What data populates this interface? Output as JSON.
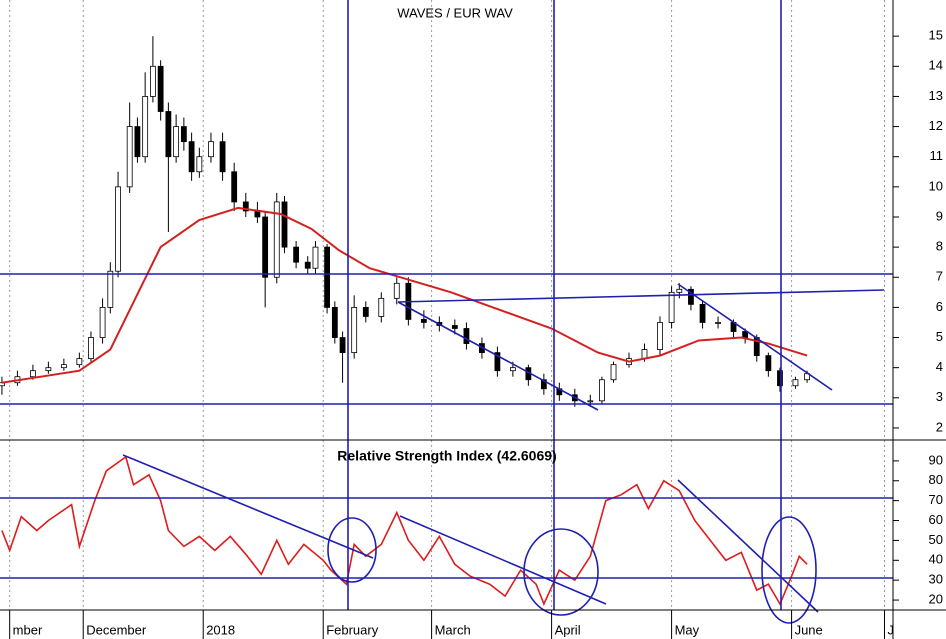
{
  "chart_data": [
    {
      "type": "candlestick",
      "title": "WAVES / EUR WAV",
      "x": [
        9,
        13,
        17,
        21,
        25,
        29,
        32,
        35,
        37,
        39,
        42,
        44,
        46,
        48,
        50,
        52,
        54,
        56,
        58,
        60,
        63,
        66,
        69,
        72,
        75,
        77,
        80,
        82,
        85,
        88,
        90,
        93,
        95,
        97,
        100,
        103,
        107,
        111,
        114,
        118,
        122,
        126,
        129,
        133,
        137,
        141,
        145,
        149,
        153,
        157,
        161,
        164,
        167,
        171,
        175,
        179,
        182,
        184,
        187,
        190,
        194,
        198,
        201,
        204,
        207,
        210,
        214,
        217
      ],
      "open": [
        3.4,
        3.5,
        3.7,
        3.9,
        4.0,
        4.1,
        4.3,
        5.0,
        6.0,
        7.2,
        10.0,
        12.0,
        11.0,
        13.0,
        14.0,
        12.5,
        11.0,
        12.0,
        11.5,
        10.5,
        11.0,
        11.5,
        10.5,
        9.5,
        9.2,
        9.0,
        7.0,
        9.5,
        8.0,
        7.5,
        7.3,
        8.0,
        6.0,
        5.0,
        4.5,
        6.0,
        5.7,
        6.3,
        6.8,
        5.6,
        5.5,
        5.4,
        5.3,
        4.8,
        4.5,
        3.9,
        4.0,
        3.6,
        3.3,
        3.1,
        2.9,
        2.9,
        3.6,
        4.1,
        4.3,
        4.6,
        5.5,
        6.5,
        6.6,
        6.1,
        5.5,
        5.5,
        5.2,
        5.0,
        4.4,
        3.9,
        3.4,
        3.6
      ],
      "high": [
        3.7,
        3.9,
        4.1,
        4.2,
        4.3,
        4.5,
        5.2,
        6.3,
        7.5,
        10.5,
        12.8,
        12.3,
        13.8,
        15.0,
        14.2,
        12.8,
        12.4,
        12.3,
        11.8,
        11.3,
        11.8,
        11.8,
        10.8,
        9.8,
        9.5,
        9.2,
        9.8,
        9.7,
        8.2,
        7.7,
        8.2,
        8.1,
        6.2,
        5.2,
        6.4,
        6.2,
        6.5,
        7.0,
        7.0,
        5.9,
        5.7,
        5.6,
        5.5,
        5.0,
        4.7,
        4.2,
        4.1,
        3.8,
        3.5,
        3.3,
        3.1,
        3.7,
        4.2,
        4.5,
        4.8,
        5.7,
        6.7,
        6.8,
        6.7,
        6.2,
        5.7,
        5.6,
        5.3,
        5.1,
        4.5,
        4.0,
        3.7,
        3.9
      ],
      "low": [
        3.1,
        3.4,
        3.6,
        3.8,
        3.9,
        4.0,
        4.2,
        4.8,
        5.8,
        7.0,
        9.8,
        10.8,
        10.8,
        12.8,
        12.2,
        8.5,
        10.8,
        11.2,
        10.2,
        10.3,
        10.8,
        10.2,
        9.2,
        9.0,
        8.8,
        6.0,
        6.8,
        7.8,
        7.3,
        7.1,
        7.1,
        5.8,
        4.8,
        3.5,
        4.3,
        5.5,
        5.5,
        6.1,
        5.4,
        5.3,
        5.2,
        5.1,
        4.6,
        4.3,
        3.7,
        3.7,
        3.4,
        3.1,
        2.9,
        2.7,
        2.7,
        2.8,
        3.5,
        4.0,
        4.2,
        4.4,
        5.3,
        6.3,
        5.9,
        5.3,
        5.3,
        5.0,
        4.8,
        4.2,
        3.7,
        3.2,
        3.3,
        3.5
      ],
      "close": [
        3.5,
        3.7,
        3.9,
        4.0,
        4.1,
        4.3,
        5.0,
        6.0,
        7.2,
        10.0,
        12.0,
        11.0,
        13.0,
        14.0,
        12.5,
        11.0,
        12.0,
        11.5,
        10.5,
        11.0,
        11.5,
        10.5,
        9.5,
        9.2,
        9.0,
        7.0,
        9.5,
        8.0,
        7.5,
        7.3,
        8.0,
        6.0,
        5.0,
        4.5,
        6.0,
        5.7,
        6.3,
        6.8,
        5.6,
        5.5,
        5.4,
        5.3,
        4.8,
        4.5,
        3.9,
        4.0,
        3.6,
        3.3,
        3.1,
        2.9,
        2.9,
        3.6,
        4.1,
        4.3,
        4.6,
        5.5,
        6.5,
        6.6,
        6.1,
        5.5,
        5.5,
        5.2,
        5.0,
        4.4,
        3.9,
        3.4,
        3.6,
        3.8
      ],
      "up_color": "#ffffff",
      "down_color": "#000000",
      "moving_average": {
        "color": "#d42020",
        "x": [
          9,
          29,
          37,
          45,
          50,
          60,
          70,
          81,
          89,
          96,
          104,
          112,
          125,
          138,
          151,
          163,
          171,
          179,
          189,
          200,
          207,
          217
        ],
        "values": [
          3.5,
          3.9,
          4.6,
          6.7,
          8.0,
          8.9,
          9.3,
          9.1,
          8.6,
          7.9,
          7.3,
          7.0,
          6.5,
          5.9,
          5.3,
          4.5,
          4.2,
          4.4,
          4.9,
          5.0,
          4.8,
          4.4
        ]
      },
      "xlim": [
        8.5,
        239.2
      ],
      "ylim": [
        1.6,
        16.2
      ],
      "yticks": [
        2,
        3,
        4,
        5,
        6,
        7,
        8,
        9,
        10,
        11,
        12,
        13,
        14,
        15
      ]
    },
    {
      "type": "line",
      "title": "Relative Strength Index (42.6069)",
      "x": [
        9,
        11,
        14,
        18,
        21,
        27,
        29,
        33,
        36,
        41,
        43,
        47,
        50,
        52,
        56,
        60,
        64,
        68,
        72,
        76,
        80,
        83,
        87,
        92,
        94,
        98,
        100,
        103,
        107,
        111,
        114,
        118,
        122,
        126,
        130,
        135,
        139,
        143,
        147,
        149,
        153,
        157,
        161,
        165,
        169,
        173,
        176,
        180,
        184,
        188,
        192,
        196,
        200,
        204,
        207,
        210,
        213,
        215,
        217
      ],
      "values": [
        55,
        45,
        62,
        55,
        60,
        68,
        47,
        70,
        85,
        92,
        78,
        83,
        70,
        55,
        47,
        52,
        45,
        52,
        43,
        33,
        50,
        38,
        48,
        40,
        35,
        28,
        48,
        42,
        48,
        64,
        50,
        40,
        52,
        38,
        32,
        28,
        22,
        35,
        28,
        18,
        35,
        30,
        42,
        70,
        73,
        78,
        66,
        80,
        75,
        60,
        50,
        40,
        44,
        25,
        28,
        18,
        32,
        42,
        38
      ],
      "color": "#e01b1b",
      "xlim": [
        8.5,
        239.2
      ],
      "ylim": [
        15,
        100
      ],
      "yticks": [
        20,
        30,
        40,
        50,
        60,
        70,
        80,
        90
      ],
      "xticks": [
        {
          "value": 11,
          "label": "mber"
        },
        {
          "value": 30,
          "label": "December"
        },
        {
          "value": 61,
          "label": "2018"
        },
        {
          "value": 92,
          "label": "February"
        },
        {
          "value": 120,
          "label": "March"
        },
        {
          "value": 151,
          "label": "April"
        },
        {
          "value": 182,
          "label": "May"
        },
        {
          "value": 213,
          "label": "June"
        },
        {
          "value": 237,
          "label": "J"
        }
      ]
    }
  ]
}
